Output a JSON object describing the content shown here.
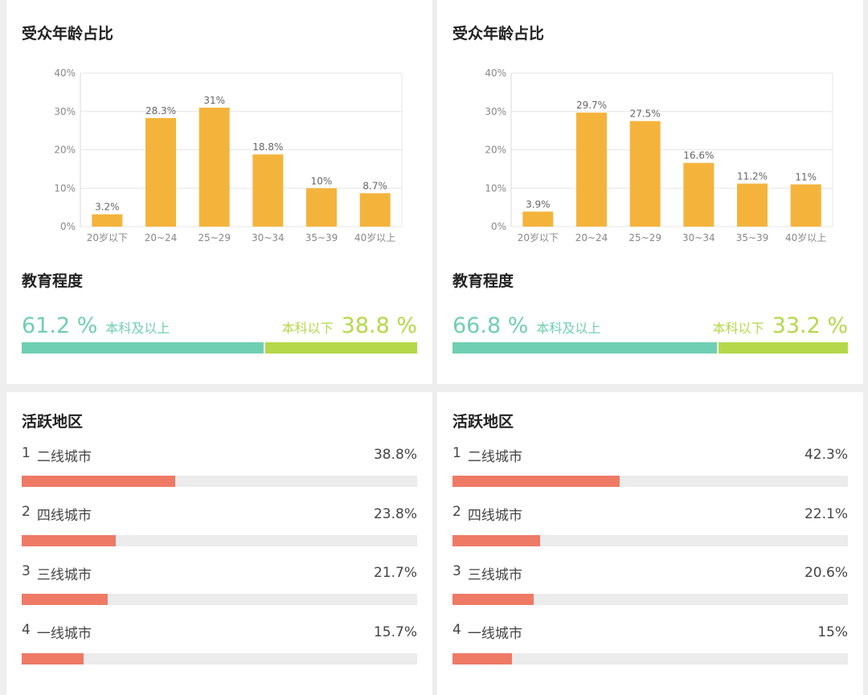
{
  "colors": {
    "bar": "#f4b43c",
    "edu_primary": "#6fcfb2",
    "edu_secondary": "#b5d84a",
    "region": "#ee7a66",
    "grid": "#e6e6e6",
    "axis_text": "#888888"
  },
  "panels": [
    {
      "age_title": "受众年龄占比",
      "edu_title": "教育程度",
      "education": {
        "high_value": "61.2 %",
        "high_label": "本科及以上",
        "low_label": "本科以下",
        "low_value": "38.8 %",
        "high_fraction": 0.612
      },
      "region_title": "活跃地区",
      "regions": [
        {
          "rank": "1",
          "name": "二线城市",
          "percent": "38.8%",
          "value": 38.8
        },
        {
          "rank": "2",
          "name": "四线城市",
          "percent": "23.8%",
          "value": 23.8
        },
        {
          "rank": "3",
          "name": "三线城市",
          "percent": "21.7%",
          "value": 21.7
        },
        {
          "rank": "4",
          "name": "一线城市",
          "percent": "15.7%",
          "value": 15.7
        }
      ]
    },
    {
      "age_title": "受众年龄占比",
      "edu_title": "教育程度",
      "education": {
        "high_value": "66.8 %",
        "high_label": "本科及以上",
        "low_label": "本科以下",
        "low_value": "33.2 %",
        "high_fraction": 0.668
      },
      "region_title": "活跃地区",
      "regions": [
        {
          "rank": "1",
          "name": "二线城市",
          "percent": "42.3%",
          "value": 42.3
        },
        {
          "rank": "2",
          "name": "四线城市",
          "percent": "22.1%",
          "value": 22.1
        },
        {
          "rank": "3",
          "name": "三线城市",
          "percent": "20.6%",
          "value": 20.6
        },
        {
          "rank": "4",
          "name": "一线城市",
          "percent": "15%",
          "value": 15
        }
      ]
    }
  ],
  "chart_data": [
    {
      "type": "bar",
      "title": "受众年龄占比",
      "categories": [
        "20岁以下",
        "20~24",
        "25~29",
        "30~34",
        "35~39",
        "40岁以上"
      ],
      "values": [
        3.2,
        28.3,
        31,
        18.8,
        10,
        8.7
      ],
      "data_labels": [
        "3.2%",
        "28.3%",
        "31%",
        "18.8%",
        "10%",
        "8.7%"
      ],
      "yticks": [
        "0%",
        "10%",
        "20%",
        "30%",
        "40%"
      ],
      "ylim": [
        0,
        40
      ],
      "grid": true
    },
    {
      "type": "bar",
      "title": "受众年龄占比",
      "categories": [
        "20岁以下",
        "20~24",
        "25~29",
        "30~34",
        "35~39",
        "40岁以上"
      ],
      "values": [
        3.9,
        29.7,
        27.5,
        16.6,
        11.2,
        11
      ],
      "data_labels": [
        "3.9%",
        "29.7%",
        "27.5%",
        "16.6%",
        "11.2%",
        "11%"
      ],
      "yticks": [
        "0%",
        "10%",
        "20%",
        "30%",
        "40%"
      ],
      "ylim": [
        0,
        40
      ],
      "grid": true
    }
  ]
}
